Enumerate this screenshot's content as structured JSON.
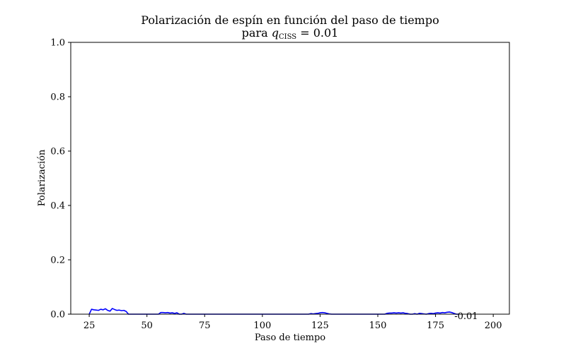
{
  "chart_data": {
    "type": "line",
    "title": "Polarización de espín en función del paso de tiempo",
    "subtitle": {
      "prefix": "para ",
      "variable": "q",
      "subscript": "CISS",
      "suffix": " = 0.01"
    },
    "xlabel": "Paso de tiempo",
    "ylabel": "Polarización",
    "xlim": [
      17,
      207
    ],
    "ylim": [
      0,
      1
    ],
    "x_ticks": [
      25,
      50,
      75,
      100,
      125,
      150,
      175,
      200
    ],
    "x_tick_labels": [
      "25",
      "50",
      "75",
      "100",
      "125",
      "150",
      "175",
      "200"
    ],
    "y_ticks": [
      0,
      0.2,
      0.4,
      0.6,
      0.8,
      1.0
    ],
    "y_tick_labels": [
      "0.0",
      "0.2",
      "0.4",
      "0.6",
      "0.8",
      "1.0"
    ],
    "grid": false,
    "series_color": "#0000ff",
    "annotation": {
      "text": "-0.01",
      "x": 185,
      "y": 0
    },
    "series": [
      {
        "x": [
          25,
          26,
          27,
          28,
          29,
          30,
          31,
          32,
          33,
          34,
          35,
          36,
          37,
          38,
          39,
          40,
          41,
          42,
          45,
          50,
          55,
          56,
          57,
          58,
          59,
          60,
          61,
          62,
          63,
          64,
          65,
          66,
          67,
          70,
          80,
          90,
          100,
          110,
          120,
          121,
          122,
          123,
          124,
          125,
          126,
          127,
          128,
          129,
          130,
          135,
          140,
          144,
          145,
          150,
          153,
          154,
          155,
          156,
          157,
          158,
          159,
          160,
          161,
          162,
          163,
          164,
          165,
          166,
          167,
          168,
          169,
          170,
          171,
          172,
          173,
          174,
          175,
          176,
          177,
          178,
          179,
          180,
          181,
          182,
          183,
          184,
          185
        ],
        "y": [
          0.0,
          0.018,
          0.016,
          0.015,
          0.014,
          0.018,
          0.016,
          0.02,
          0.014,
          0.011,
          0.021,
          0.017,
          0.014,
          0.015,
          0.013,
          0.014,
          0.01,
          0.0,
          0.0,
          0.0,
          0.0,
          0.006,
          0.006,
          0.005,
          0.006,
          0.004,
          0.005,
          0.003,
          0.005,
          0.0,
          0.0,
          0.003,
          0.0,
          0.0,
          0.0,
          0.0,
          0.0,
          0.0,
          0.0,
          0.002,
          0.001,
          0.002,
          0.003,
          0.005,
          0.006,
          0.005,
          0.003,
          0.001,
          0.0,
          0.0,
          0.0,
          0.0,
          0.0,
          0.0,
          0.0,
          0.003,
          0.004,
          0.004,
          0.005,
          0.004,
          0.005,
          0.004,
          0.005,
          0.003,
          0.002,
          0.0,
          0.0,
          0.002,
          0.0,
          0.003,
          0.002,
          0.001,
          0.0,
          0.002,
          0.003,
          0.002,
          0.004,
          0.005,
          0.004,
          0.006,
          0.005,
          0.007,
          0.008,
          0.006,
          0.003,
          0.0,
          0.0
        ]
      }
    ]
  }
}
